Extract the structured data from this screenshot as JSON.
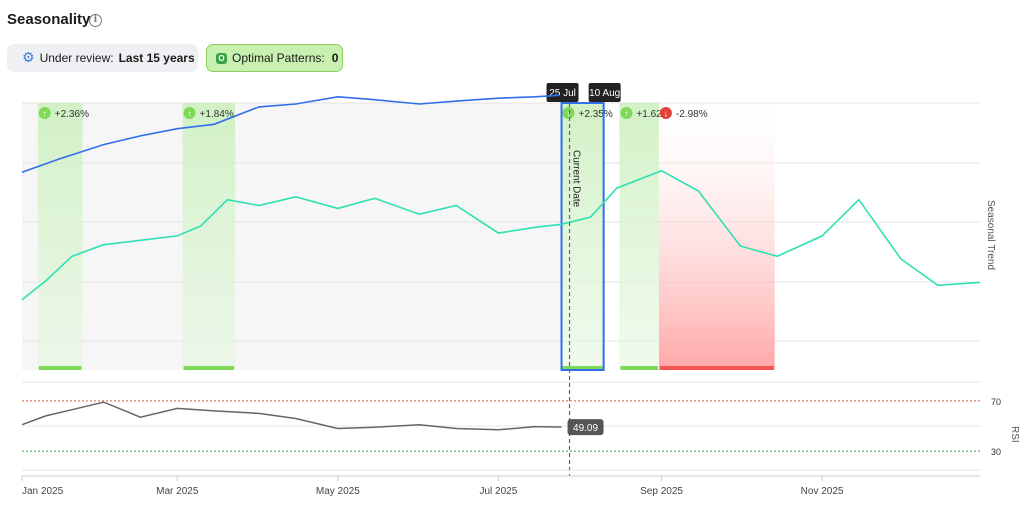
{
  "header": {
    "title": "Seasonality",
    "info_icon": "info-icon"
  },
  "filters": {
    "review_label": "Under review:",
    "review_value": "Last 15 years",
    "review_icon": "gear-icon",
    "optimal_label": "Optimal Patterns:",
    "optimal_value": "0",
    "optimal_icon": "pattern-badge-icon"
  },
  "chart_data": [
    {
      "type": "line",
      "ylabel": "Seasonal Trend",
      "x_ticks": [
        "Jan 2025",
        "Mar 2025",
        "May 2025",
        "Jul 2025",
        "Sep 2025",
        "Nov 2025"
      ],
      "x_range": [
        "2025-01-01",
        "2025-12-31"
      ],
      "grid": true,
      "series": [
        {
          "color": "#2f6fea",
          "x": [
            "2025-01-01",
            "2025-01-15",
            "2025-02-01",
            "2025-02-15",
            "2025-03-01",
            "2025-03-15",
            "2025-04-01",
            "2025-04-15",
            "2025-05-01",
            "2025-05-15",
            "2025-06-01",
            "2025-06-15",
            "2025-07-01",
            "2025-07-15",
            "2025-07-24"
          ],
          "y": [
            0.33,
            0.42,
            0.52,
            0.58,
            0.63,
            0.66,
            0.78,
            0.8,
            0.85,
            0.83,
            0.8,
            0.82,
            0.84,
            0.85,
            0.86
          ]
        },
        {
          "color": "#2ee0b2",
          "x": [
            "2025-01-01",
            "2025-01-10",
            "2025-01-20",
            "2025-02-01",
            "2025-02-15",
            "2025-03-01",
            "2025-03-10",
            "2025-03-20",
            "2025-04-01",
            "2025-04-15",
            "2025-05-01",
            "2025-05-15",
            "2025-06-01",
            "2025-06-15",
            "2025-07-01",
            "2025-07-15",
            "2025-07-25",
            "2025-08-05",
            "2025-08-15",
            "2025-09-01",
            "2025-09-15",
            "2025-10-01",
            "2025-10-15",
            "2025-11-01",
            "2025-11-15",
            "2025-12-01",
            "2025-12-15",
            "2025-12-31"
          ],
          "y": [
            -0.55,
            -0.42,
            -0.25,
            -0.17,
            -0.14,
            -0.11,
            -0.04,
            0.14,
            0.1,
            0.16,
            0.08,
            0.15,
            0.04,
            0.1,
            -0.09,
            -0.05,
            -0.03,
            0.02,
            0.22,
            0.34,
            0.2,
            -0.18,
            -0.25,
            -0.11,
            0.14,
            -0.27,
            -0.45,
            -0.43
          ]
        }
      ],
      "markers": [
        {
          "label": "Current Date",
          "x": "2025-07-25"
        }
      ],
      "highlight_window": {
        "start_label": "25 Jul",
        "end_label": "10 Aug",
        "start": "2025-07-25",
        "end": "2025-08-10"
      },
      "zones": [
        {
          "label": "+2.36%",
          "start": "2025-01-07",
          "end": "2025-01-24",
          "direction": "up"
        },
        {
          "label": "+1.84%",
          "start": "2025-03-03",
          "end": "2025-03-23",
          "direction": "up"
        },
        {
          "label": "+2.35%",
          "start": "2025-07-25",
          "end": "2025-08-10",
          "direction": "up"
        },
        {
          "label": "+1.62%",
          "start": "2025-08-16",
          "end": "2025-08-31",
          "direction": "up"
        },
        {
          "label": "-2.98%",
          "start": "2025-08-31",
          "end": "2025-10-14",
          "direction": "down"
        }
      ]
    },
    {
      "type": "line",
      "ylabel": "RSI",
      "y_ticks": [
        70,
        30
      ],
      "ylim": [
        15,
        85
      ],
      "current_value_label": "49.09",
      "series": [
        {
          "color": "#666666",
          "x": [
            "2025-01-01",
            "2025-01-10",
            "2025-01-20",
            "2025-02-01",
            "2025-02-15",
            "2025-03-01",
            "2025-03-15",
            "2025-04-01",
            "2025-04-15",
            "2025-05-01",
            "2025-05-15",
            "2025-06-01",
            "2025-06-15",
            "2025-07-01",
            "2025-07-15",
            "2025-07-25"
          ],
          "y": [
            51,
            58,
            63,
            69,
            57,
            64,
            62,
            60,
            56,
            48,
            49,
            51,
            48,
            47,
            49.5,
            49.09
          ]
        }
      ]
    }
  ]
}
